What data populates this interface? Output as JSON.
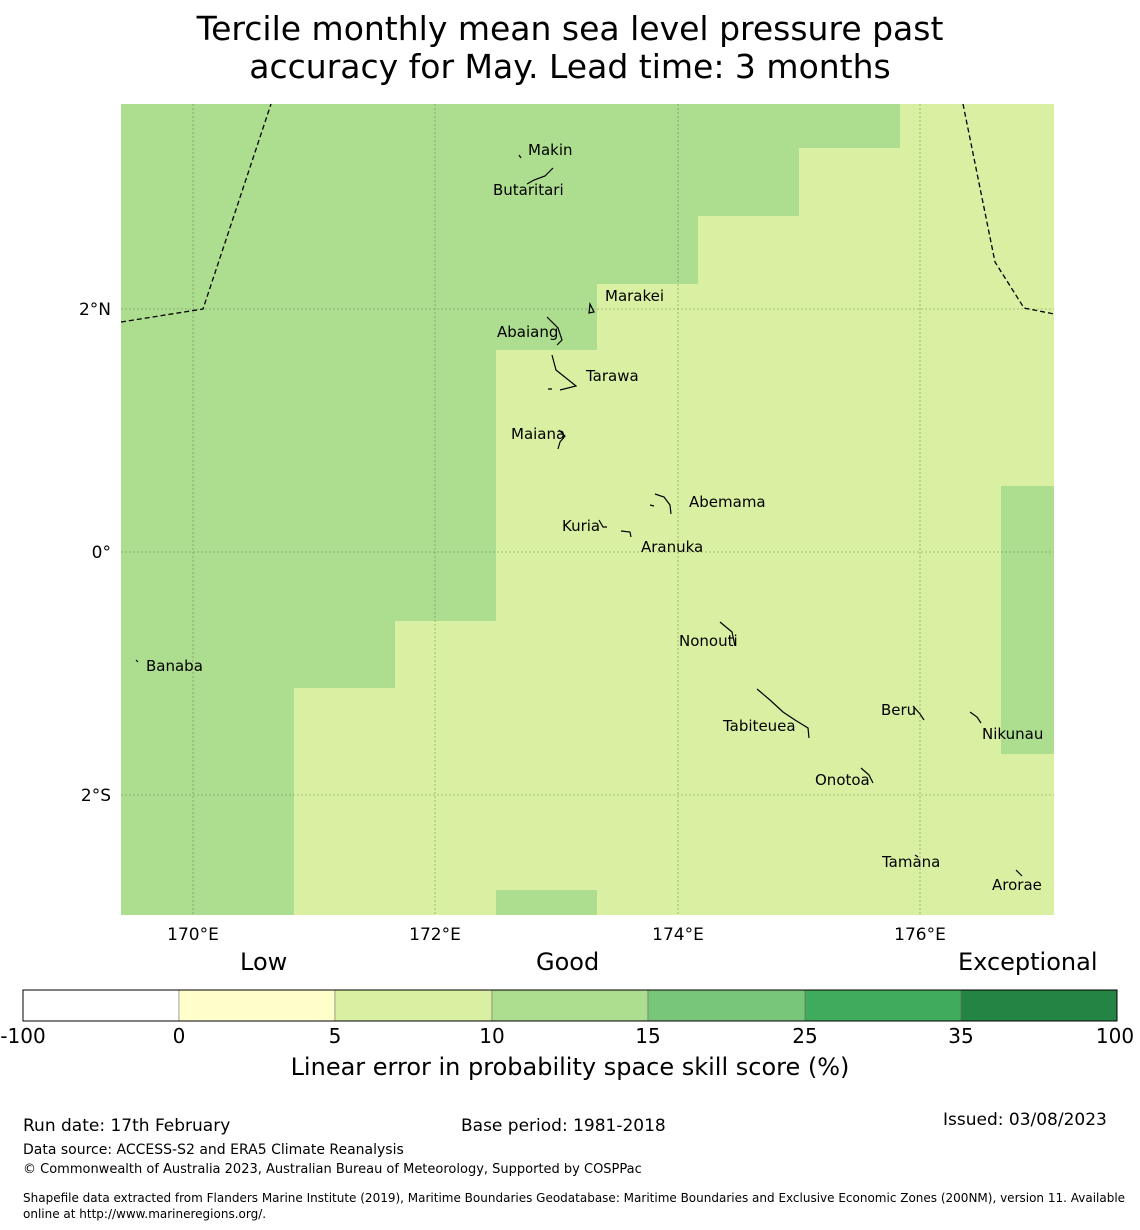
{
  "title": {
    "line1": "Tercile monthly mean sea level pressure past",
    "line2": "accuracy for May. Lead time: 3 months"
  },
  "map": {
    "lat_labels": [
      "2°N",
      "0°",
      "2°S"
    ],
    "lon_labels": [
      "170°E",
      "172°E",
      "174°E",
      "176°E"
    ],
    "islands": [
      "Makin",
      "Butaritari",
      "Marakei",
      "Abaiang",
      "Tarawa",
      "Maiana",
      "Abemama",
      "Kuria",
      "Aranuka",
      "Banaba",
      "Nonouti",
      "Beru",
      "Tabiteuea",
      "Nikunau",
      "Onotoa",
      "Tamana",
      "Arorae"
    ]
  },
  "colorbar": {
    "headings": [
      "Low",
      "Good",
      "Exceptional"
    ],
    "ticks": [
      "-100",
      "0",
      "5",
      "10",
      "15",
      "25",
      "35",
      "100"
    ],
    "colors": [
      "#ffffff",
      "#ffffcc",
      "#d9f0a3",
      "#addd8e",
      "#78c679",
      "#41ab5d",
      "#238443"
    ],
    "label": "Linear error in probability space skill score (%)"
  },
  "footer": {
    "run_date": "Run date: 17th February",
    "base_period": "Base period: 1981-2018",
    "issued": "Issued: 03/08/2023",
    "data_source": "Data source: ACCESS-S2 and ERA5 Climate Reanalysis",
    "copyright": "© Commonwealth of Australia 2023, Australian Bureau of Meteorology, Supported by COSPPac",
    "shapefile_line1": "Shapefile data extracted from Flanders Marine Institute (2019), Maritime Boundaries Geodatabase: Maritime Boundaries and Exclusive Economic Zones (200NM), version 11. Available",
    "shapefile_line2": "online at http://www.marineregions.org/."
  }
}
